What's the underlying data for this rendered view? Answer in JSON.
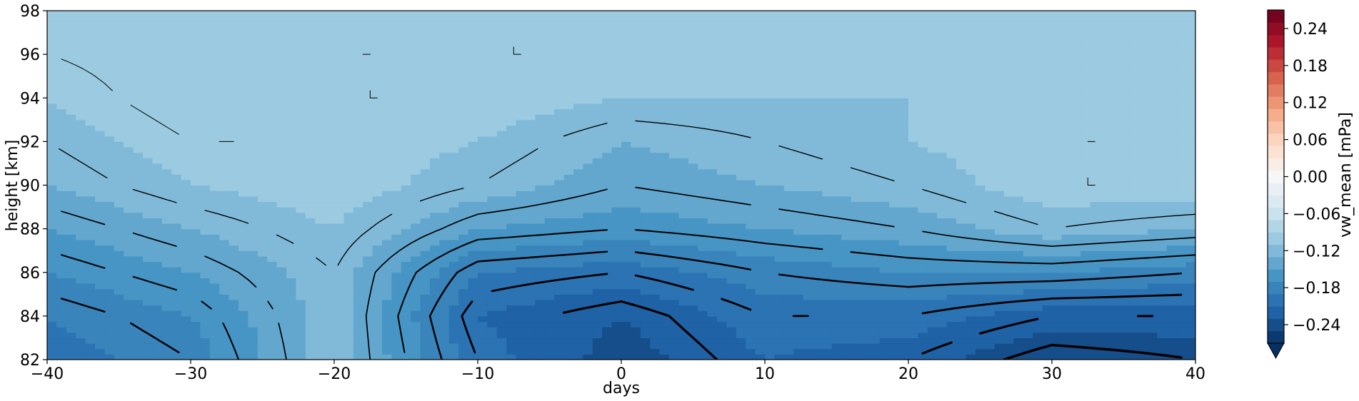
{
  "chart_data": {
    "type": "heatmap",
    "subtype": "filled-contour",
    "title": "",
    "xlabel": "days",
    "ylabel": "height [km]",
    "xlim": [
      -40,
      40
    ],
    "ylim": [
      82,
      98
    ],
    "x_ticks": [
      -40,
      -30,
      -20,
      -10,
      0,
      10,
      20,
      30,
      40
    ],
    "x_tick_labels": [
      "−40",
      "−30",
      "−20",
      "−10",
      "0",
      "10",
      "20",
      "30",
      "40"
    ],
    "y_ticks": [
      82,
      84,
      86,
      88,
      90,
      92,
      94,
      96,
      98
    ],
    "y_tick_labels": [
      "82",
      "84",
      "86",
      "88",
      "90",
      "92",
      "94",
      "96",
      "98"
    ],
    "colormap": "RdBu_r",
    "colorbar": {
      "label": "vw_mean [mPa]",
      "range": [
        -0.27,
        0.27
      ],
      "extend": "min",
      "ticks": [
        -0.24,
        -0.18,
        -0.12,
        -0.06,
        0.0,
        0.06,
        0.12,
        0.18,
        0.24
      ],
      "tick_labels": [
        "−0.24",
        "−0.18",
        "−0.12",
        "−0.06",
        "0.00",
        "0.06",
        "0.12",
        "0.18",
        "0.24"
      ]
    },
    "grid": {
      "x": [
        -40,
        -30,
        -20,
        -10,
        0,
        10,
        20,
        30,
        40
      ],
      "y": [
        82,
        84,
        86,
        88,
        90,
        92,
        94,
        96,
        98
      ]
    },
    "values": [
      [
        -0.2,
        -0.18,
        -0.12,
        -0.2,
        -0.24,
        -0.21,
        -0.22,
        -0.25,
        -0.24
      ],
      [
        -0.19,
        -0.17,
        -0.12,
        -0.21,
        -0.23,
        -0.2,
        -0.2,
        -0.22,
        -0.22
      ],
      [
        -0.17,
        -0.15,
        -0.12,
        -0.19,
        -0.2,
        -0.18,
        -0.17,
        -0.17,
        -0.18
      ],
      [
        -0.15,
        -0.13,
        -0.11,
        -0.15,
        -0.16,
        -0.15,
        -0.14,
        -0.12,
        -0.13
      ],
      [
        -0.13,
        -0.11,
        -0.1,
        -0.12,
        -0.14,
        -0.13,
        -0.12,
        -0.1,
        -0.1
      ],
      [
        -0.12,
        -0.1,
        -0.1,
        -0.11,
        -0.13,
        -0.12,
        -0.11,
        -0.1,
        -0.1
      ],
      [
        -0.11,
        -0.09,
        -0.1,
        -0.1,
        -0.11,
        -0.11,
        -0.11,
        -0.11,
        -0.11
      ],
      [
        -0.1,
        -0.09,
        -0.1,
        -0.1,
        -0.1,
        -0.11,
        -0.11,
        -0.1,
        -0.11
      ],
      [
        -0.1,
        -0.09,
        -0.09,
        -0.1,
        -0.1,
        -0.1,
        -0.1,
        -0.1,
        -0.11
      ]
    ],
    "contour_levels": [
      -0.24,
      -0.22,
      -0.2,
      -0.18,
      -0.16,
      -0.14,
      -0.12,
      -0.1,
      -0.08
    ],
    "contour_colors": "black"
  }
}
